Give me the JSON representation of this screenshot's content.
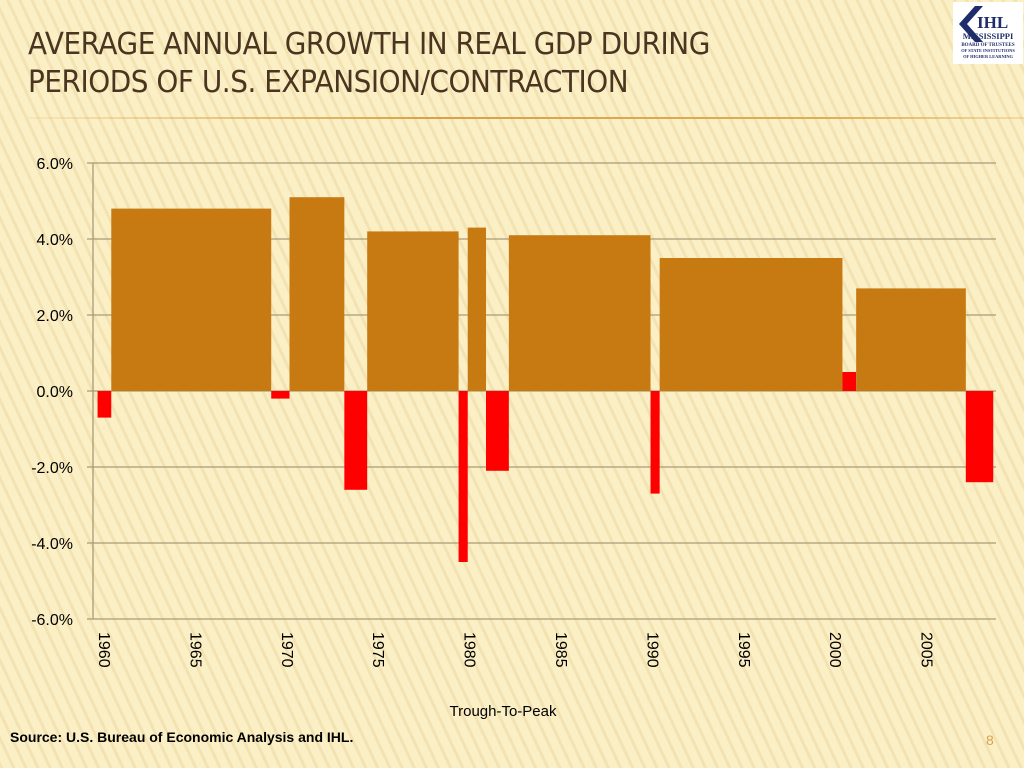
{
  "slide": {
    "title_line1": "AVERAGE ANNUAL GROWTH IN REAL GDP DURING",
    "title_line2": "PERIODS OF U.S. EXPANSION/CONTRACTION",
    "logo_text": "IHL MISSISSIPPI BOARD OF TRUSTEES OF STATE INSTITUTIONS OF HIGHER LEARNING",
    "source": "Source: U.S. Bureau of Economic Analysis and IHL.",
    "page_number": "8"
  },
  "chart_data": {
    "type": "bar",
    "title": "",
    "xlabel": "Trough-To-Peak",
    "ylabel": "",
    "ylim": [
      -6,
      6
    ],
    "xlim": [
      1960,
      2009.4
    ],
    "y_ticks": [
      "6.0%",
      "4.0%",
      "2.0%",
      "0.0%",
      "-2.0%",
      "-4.0%",
      "-6.0%"
    ],
    "y_tick_values": [
      6,
      4,
      2,
      0,
      -2,
      -4,
      -6
    ],
    "x_ticks": [
      "1960",
      "1965",
      "1970",
      "1975",
      "1980",
      "1985",
      "1990",
      "1995",
      "2000",
      "2005"
    ],
    "grid": true,
    "colors": {
      "expansion": "#c77a12",
      "contraction": "#ff0000",
      "grid": "#a89a78"
    },
    "periods": [
      {
        "type": "contraction",
        "start": "1960Q2",
        "end": "1961Q1",
        "value": -0.7
      },
      {
        "type": "expansion",
        "start": "1961Q1",
        "end": "1969Q4",
        "value": 4.8
      },
      {
        "type": "contraction",
        "start": "1969Q4",
        "end": "1970Q4",
        "value": -0.2
      },
      {
        "type": "expansion",
        "start": "1970Q4",
        "end": "1973Q4",
        "value": 5.1
      },
      {
        "type": "contraction",
        "start": "1973Q4",
        "end": "1975Q1",
        "value": -2.6
      },
      {
        "type": "expansion",
        "start": "1975Q1",
        "end": "1980Q1",
        "value": 4.2
      },
      {
        "type": "contraction",
        "start": "1980Q1",
        "end": "1980Q3",
        "value": -4.5
      },
      {
        "type": "expansion",
        "start": "1980Q3",
        "end": "1981Q3",
        "value": 4.3
      },
      {
        "type": "contraction",
        "start": "1981Q3",
        "end": "1982Q4",
        "value": -2.1
      },
      {
        "type": "expansion",
        "start": "1982Q4",
        "end": "1990Q3",
        "value": 4.1
      },
      {
        "type": "contraction",
        "start": "1990Q3",
        "end": "1991Q1",
        "value": -2.7
      },
      {
        "type": "expansion",
        "start": "1991Q1",
        "end": "2001Q1",
        "value": 3.5
      },
      {
        "type": "contraction",
        "start": "2001Q1",
        "end": "2001Q4",
        "value": 0.5
      },
      {
        "type": "expansion",
        "start": "2001Q4",
        "end": "2007Q4",
        "value": 2.7
      },
      {
        "type": "contraction",
        "start": "2007Q4",
        "end": "2009Q2",
        "value": -2.4
      }
    ]
  }
}
